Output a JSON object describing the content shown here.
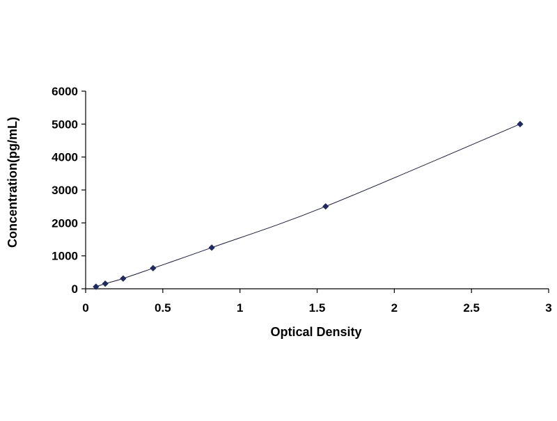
{
  "chart_data": {
    "type": "scatter",
    "title": "",
    "xlabel": "Optical Density",
    "ylabel": "Concentration(pg/mL)",
    "xlim": [
      0,
      3
    ],
    "ylim": [
      0,
      6000
    ],
    "x_ticks": [
      "0",
      "0.5",
      "1",
      "1.5",
      "2",
      "2.5",
      "3"
    ],
    "y_ticks": [
      "0",
      "1000",
      "2000",
      "3000",
      "4000",
      "5000",
      "6000"
    ],
    "grid": false,
    "legend": "none",
    "fit_line": true,
    "series": [
      {
        "points": [
          {
            "x": 0.067,
            "y": 62.5
          },
          {
            "x": 0.127,
            "y": 156
          },
          {
            "x": 0.243,
            "y": 312
          },
          {
            "x": 0.437,
            "y": 625
          },
          {
            "x": 0.817,
            "y": 1250
          },
          {
            "x": 1.555,
            "y": 2500
          },
          {
            "x": 2.815,
            "y": 5000
          }
        ],
        "color": "#1f2a5e"
      }
    ]
  }
}
